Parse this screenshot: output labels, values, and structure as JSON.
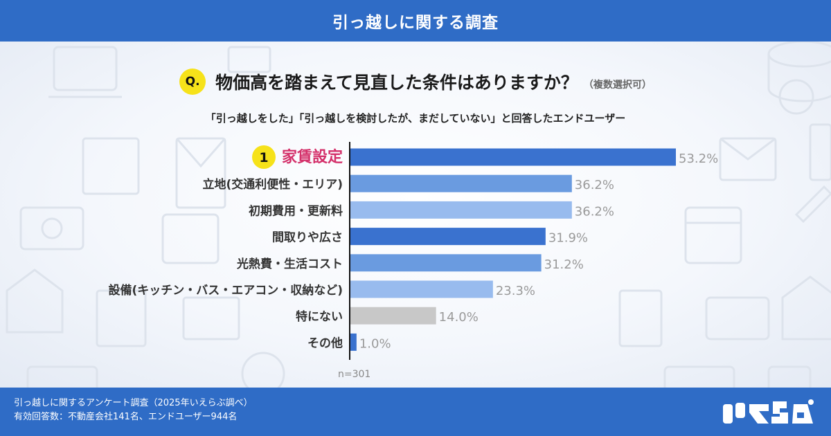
{
  "header": {
    "title": "引っ越しに関する調査"
  },
  "question": {
    "badge": "Q.",
    "text": "物価高を踏まえて見直した条件はありますか？",
    "note": "（複数選択可）"
  },
  "subtitle": "「引っ越しをした」「引っ越しを検討したが、まだしていない」と回答したエンドユーザー",
  "colors": {
    "header_bg": "#2f6cc6",
    "bar_dark": "#3a72cf",
    "bar_mid": "#6a9be0",
    "bar_light": "#98bbee",
    "bar_gray": "#c8c8c8",
    "highlight_text": "#d4306a",
    "badge_yellow": "#f6e21a"
  },
  "chart_data": {
    "type": "bar",
    "orientation": "horizontal",
    "categories": [
      "家賃設定",
      "立地(交通利便性・エリア)",
      "初期費用・更新料",
      "間取りや広さ",
      "光熱費・生活コスト",
      "設備(キッチン・バス・エアコン・収納など)",
      "特にない",
      "その他"
    ],
    "values": [
      53.2,
      36.2,
      36.2,
      31.9,
      31.2,
      23.3,
      14.0,
      1.0
    ],
    "value_labels": [
      "53.2%",
      "36.2%",
      "36.2%",
      "31.9%",
      "31.2%",
      "23.3%",
      "14.0%",
      "1.0%"
    ],
    "bar_colors": [
      "bar_dark",
      "bar_mid",
      "bar_light",
      "bar_dark",
      "bar_mid",
      "bar_light",
      "bar_gray",
      "bar_dark"
    ],
    "top_rank": {
      "badge": "1",
      "index": 0
    },
    "xlim": [
      0,
      55
    ],
    "grid": false,
    "note": "n=301"
  },
  "footer": {
    "line1": "引っ越しに関するアンケート調査（2025年いえらぶ調べ）",
    "line2": "有効回答数：不動産会社141名、エンドユーザー944名"
  },
  "logo": {
    "text": "いえらぶ"
  }
}
